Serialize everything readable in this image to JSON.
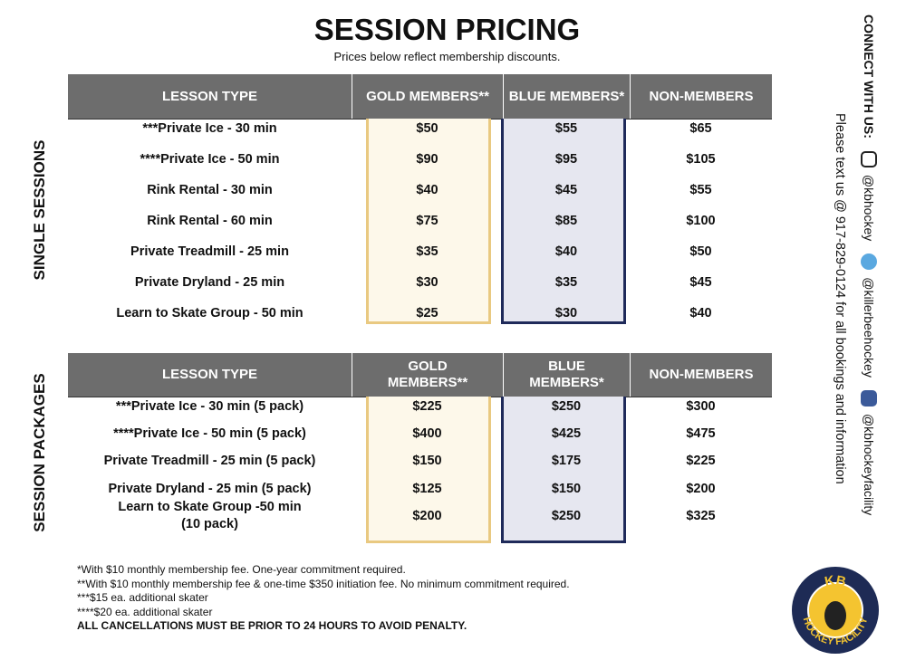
{
  "title": "SESSION PRICING",
  "subtitle": "Prices below reflect membership discounts.",
  "sections": [
    {
      "label": "SINGLE SESSIONS",
      "headers": [
        "LESSON TYPE",
        "GOLD MEMBERS**",
        "BLUE MEMBERS*",
        "NON-MEMBERS"
      ],
      "rows": [
        [
          "***Private Ice - 30 min",
          "$50",
          "$55",
          "$65"
        ],
        [
          "****Private Ice - 50 min",
          "$90",
          "$95",
          "$105"
        ],
        [
          "Rink Rental - 30 min",
          "$40",
          "$45",
          "$55"
        ],
        [
          "Rink Rental - 60 min",
          "$75",
          "$85",
          "$100"
        ],
        [
          "Private Treadmill - 25 min",
          "$35",
          "$40",
          "$50"
        ],
        [
          "Private Dryland - 25 min",
          "$30",
          "$35",
          "$45"
        ],
        [
          "Learn to Skate Group - 50 min",
          "$25",
          "$30",
          "$40"
        ]
      ]
    },
    {
      "label": "SESSION PACKAGES",
      "headers": [
        "LESSON TYPE",
        "GOLD MEMBERS**",
        "BLUE MEMBERS*",
        "NON-MEMBERS"
      ],
      "rows": [
        [
          "***Private Ice - 30 min (5 pack)",
          "$225",
          "$250",
          "$300"
        ],
        [
          "****Private Ice - 50 min (5 pack)",
          "$400",
          "$425",
          "$475"
        ],
        [
          "Private Treadmill - 25 min (5 pack)",
          "$150",
          "$175",
          "$225"
        ],
        [
          "Private Dryland - 25 min (5 pack)",
          "$125",
          "$150",
          "$200"
        ],
        [
          "Learn to Skate Group  -50 min\n(10 pack)",
          "$200",
          "$250",
          "$325"
        ]
      ]
    }
  ],
  "footnotes": [
    "*With $10 monthly membership fee. One-year commitment required.",
    "**With $10 monthly membership fee & one-time $350 initiation fee. No minimum commitment required.",
    "***$15 ea. additional skater",
    "****$20 ea. additional skater",
    "ALL CANCELLATIONS MUST BE PRIOR TO 24 HOURS TO AVOID PENALTY."
  ],
  "sidebar": {
    "connect": "CONNECT WITH US:",
    "handles": [
      "@kbhockey",
      "@killerbeehockey",
      "@kbhockeyfacility"
    ],
    "note": "Please text us @ 917-829-0124 for all bookings and information"
  },
  "logo": {
    "top": "KB",
    "bottom": "HOCKEY FACILITY"
  }
}
